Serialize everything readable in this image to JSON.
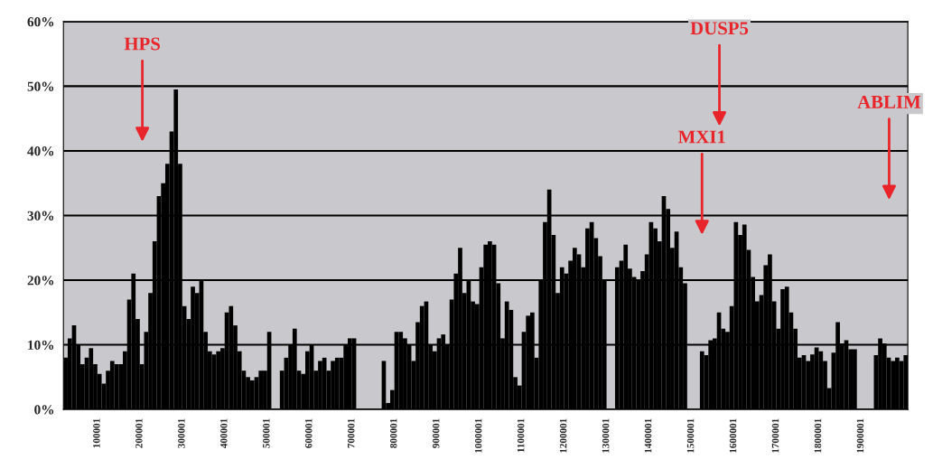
{
  "chart_data": {
    "type": "bar",
    "color": "#000000",
    "x": [
      25000,
      35000,
      45000,
      55000,
      65000,
      75000,
      85000,
      95000,
      105000,
      115000,
      125000,
      135000,
      145000,
      155000,
      165000,
      175000,
      185000,
      195000,
      205000,
      215000,
      225000,
      235000,
      245000,
      255000,
      265000,
      275000,
      285000,
      295000,
      305000,
      315000,
      325000,
      335000,
      345000,
      355000,
      365000,
      375000,
      385000,
      395000,
      405000,
      415000,
      425000,
      435000,
      445000,
      455000,
      465000,
      475000,
      485000,
      495000,
      505000,
      515000,
      525000,
      535000,
      545000,
      555000,
      565000,
      575000,
      585000,
      595000,
      605000,
      615000,
      625000,
      635000,
      645000,
      655000,
      665000,
      675000,
      685000,
      695000,
      705000,
      715000,
      725000,
      735000,
      745000,
      755000,
      765000,
      775000,
      785000,
      795000,
      805000,
      815000,
      825000,
      835000,
      845000,
      855000,
      865000,
      875000,
      885000,
      895000,
      905000,
      915000,
      925000,
      935000,
      945000,
      955000,
      965000,
      975000,
      985000,
      995000,
      1005000,
      1015000,
      1025000,
      1035000,
      1045000,
      1055000,
      1065000,
      1075000,
      1085000,
      1095000,
      1105000,
      1115000,
      1125000,
      1135000,
      1145000,
      1155000,
      1165000,
      1175000,
      1185000,
      1195000,
      1205000,
      1215000,
      1225000,
      1235000,
      1245000,
      1255000,
      1265000,
      1275000,
      1285000,
      1295000,
      1305000,
      1315000,
      1325000,
      1335000,
      1345000,
      1355000,
      1365000,
      1375000,
      1385000,
      1395000,
      1405000,
      1415000,
      1425000,
      1435000,
      1445000,
      1455000,
      1465000,
      1475000,
      1485000,
      1495000,
      1505000,
      1515000,
      1525000,
      1535000,
      1545000,
      1555000,
      1565000,
      1575000,
      1585000,
      1595000,
      1605000,
      1615000,
      1625000,
      1635000,
      1645000,
      1655000,
      1665000,
      1675000,
      1685000,
      1695000,
      1705000,
      1715000,
      1725000,
      1735000,
      1745000,
      1755000,
      1765000,
      1775000,
      1785000,
      1795000,
      1805000,
      1815000,
      1825000,
      1835000,
      1845000,
      1855000,
      1865000,
      1875000,
      1885000,
      1895000,
      1905000,
      1915000,
      1925000,
      1935000,
      1945000,
      1955000,
      1965000,
      1975000,
      1985000,
      1995000,
      2005000
    ],
    "values": [
      8,
      11,
      13,
      10,
      7,
      8,
      9.5,
      7,
      5.5,
      4,
      6,
      7.5,
      7,
      7,
      9,
      17,
      21,
      14,
      7,
      12,
      18,
      26,
      33,
      35,
      38,
      43,
      49.5,
      38,
      16,
      14,
      19,
      18,
      20,
      12,
      9,
      8.5,
      9,
      9.5,
      15,
      16,
      13,
      9,
      6,
      5,
      4.5,
      5,
      6,
      6,
      12,
      0,
      0,
      6,
      8,
      10,
      12.5,
      6,
      5.5,
      9,
      10,
      6,
      7.5,
      8,
      6,
      7.5,
      8,
      8,
      10,
      11,
      11,
      0,
      0,
      0,
      0,
      0,
      0,
      7.5,
      1,
      3,
      12,
      12,
      11,
      10,
      7.5,
      13.5,
      16,
      16.7,
      10,
      9,
      11,
      11.6,
      10,
      17,
      21,
      25,
      18,
      20,
      16.7,
      16.3,
      22,
      25.5,
      26,
      25.5,
      19.5,
      11,
      16.7,
      15.4,
      5,
      3.7,
      12,
      14.5,
      15,
      8,
      20,
      29,
      34,
      27,
      18,
      22,
      21,
      23,
      25,
      24,
      22,
      28,
      29,
      26.5,
      23.7,
      20,
      0,
      0,
      22,
      23,
      25.5,
      21.8,
      20.5,
      20,
      21.4,
      24,
      29,
      28,
      26,
      33,
      31,
      25,
      27.5,
      22,
      19.5,
      0,
      0,
      0,
      9,
      8.4,
      10.7,
      11,
      15,
      12.5,
      12,
      16,
      29,
      27,
      28.6,
      24.7,
      20.5,
      16.7,
      17.7,
      22.3,
      24,
      16.7,
      12.5,
      18.6,
      19,
      15,
      12.5,
      8,
      8.4,
      7.5,
      8.5,
      9.6,
      9,
      7.5,
      3.3,
      8.8,
      13.5,
      10.2,
      10.7,
      9.3,
      9.3,
      0,
      0,
      0,
      0,
      8.4,
      11,
      10.2,
      8,
      7.5,
      8,
      7.5,
      8.4
    ],
    "xlim": [
      20000,
      2010000
    ],
    "xticks": [
      100001,
      200001,
      300001,
      400001,
      500001,
      600001,
      700001,
      800001,
      900001,
      1000001,
      1100001,
      1200001,
      1300001,
      1400001,
      1500001,
      1600001,
      1700001,
      1800001,
      1900001
    ],
    "ylim": [
      0,
      60
    ],
    "yticks": [
      {
        "value": 0,
        "label": "0%"
      },
      {
        "value": 10,
        "label": "10%"
      },
      {
        "value": 20,
        "label": "20%"
      },
      {
        "value": 30,
        "label": "30%"
      },
      {
        "value": 40,
        "label": "40%"
      },
      {
        "value": 50,
        "label": "50%"
      },
      {
        "value": 60,
        "label": "60%"
      }
    ],
    "grid": "y",
    "annotations": [
      {
        "text": "HPS",
        "x": 206000
      },
      {
        "text": "DUSP5",
        "x": 1566000
      },
      {
        "text": "MXI1",
        "x": 1525000
      },
      {
        "text": "ABLIM",
        "x": 1966000
      }
    ]
  }
}
